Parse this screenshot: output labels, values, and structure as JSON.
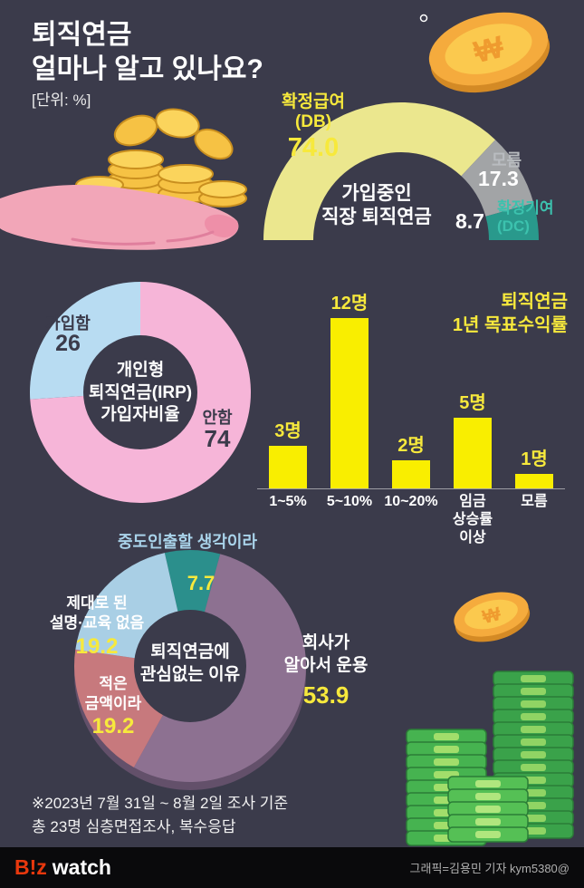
{
  "header": {
    "title": "퇴직연금\n얼마나 알고 있나요?",
    "unit_note": "[단위: %]"
  },
  "gauge": {
    "title": "가입중인\n직장 퇴직연금",
    "db_label": "확정급여\n(DB)",
    "db_value": "74.0",
    "unknown_label": "모름",
    "unknown_value": "17.3",
    "dc_value": "8.7",
    "dc_label": "확정기여\n(DC)"
  },
  "irp": {
    "center_text": "개인형\n퇴직연금(IRP)\n가입자비율",
    "joined_label": "가입함",
    "joined_value": "26",
    "not_joined_label": "안함",
    "not_joined_value": "74"
  },
  "bar_chart": {
    "title": "퇴직연금\n1년 목표수익률",
    "bars": [
      {
        "label": "1~5%",
        "count": "3명"
      },
      {
        "label": "5~10%",
        "count": "12명"
      },
      {
        "label": "10~20%",
        "count": "2명"
      },
      {
        "label": "임금\n상승률\n이상",
        "count": "5명"
      },
      {
        "label": "모름",
        "count": "1명"
      }
    ]
  },
  "reasons": {
    "center_text": "퇴직연금에\n관심없는 이유",
    "withdraw_label": "중도인출할 생각이라",
    "withdraw_value": "7.7",
    "noexplain_label": "제대로 된\n설명·교육 없음",
    "noexplain_value": "19.2",
    "small_label": "적은\n금액이라",
    "small_value": "19.2",
    "company_label": "회사가\n알아서 운용",
    "company_value": "53.9"
  },
  "footnote": "※2023년 7월 31일 ~ 8월 2일 조사 기준\n총 23명 심층면접조사, 복수응답",
  "footer": {
    "logo_biz": "B!z",
    "logo_watch": "watch",
    "credit": "그래픽=김용민 기자 kym5380@"
  },
  "deco": {
    "coin_symbol": "₩"
  },
  "colors": {
    "background": "#3b3b4b",
    "accent_yellow": "#f7e93c",
    "bar_yellow": "#f9ee00"
  },
  "chart_data": [
    {
      "type": "pie",
      "variant": "semi-donut-gauge",
      "title": "가입중인 직장 퇴직연금",
      "unit": "%",
      "legend_position": "around-arc",
      "segments": [
        {
          "label": "확정급여(DB)",
          "value": 74.0,
          "color": "#ebe78e"
        },
        {
          "label": "모름",
          "value": 17.3,
          "color": "#a2a4a6"
        },
        {
          "label": "확정기여(DC)",
          "value": 8.7,
          "color": "#29998c"
        }
      ]
    },
    {
      "type": "pie",
      "variant": "donut",
      "title": "개인형 퇴직연금(IRP) 가입자비율",
      "unit": "%",
      "segments": [
        {
          "label": "가입함",
          "value": 26,
          "color": "#b8dcf2"
        },
        {
          "label": "안함",
          "value": 74,
          "color": "#f6b5d8"
        }
      ]
    },
    {
      "type": "bar",
      "title": "퇴직연금 1년 목표수익률",
      "unit": "명",
      "categories": [
        "1~5%",
        "5~10%",
        "10~20%",
        "임금 상승률 이상",
        "모름"
      ],
      "values": [
        3,
        12,
        2,
        5,
        1
      ],
      "bar_color": "#f9ee00",
      "ylim": [
        0,
        12
      ],
      "grid": false
    },
    {
      "type": "pie",
      "title": "퇴직연금에 관심없는 이유",
      "unit": "%",
      "segments": [
        {
          "label": "회사가 알아서 운용",
          "value": 53.9,
          "color": "#8d7191"
        },
        {
          "label": "중도인출할 생각이라",
          "value": 7.7,
          "color": "#2b8f8c"
        },
        {
          "label": "제대로 된 설명·교육 없음",
          "value": 19.2,
          "color": "#a9cfe5"
        },
        {
          "label": "적은 금액이라",
          "value": 19.2,
          "color": "#c7797d"
        }
      ]
    }
  ]
}
